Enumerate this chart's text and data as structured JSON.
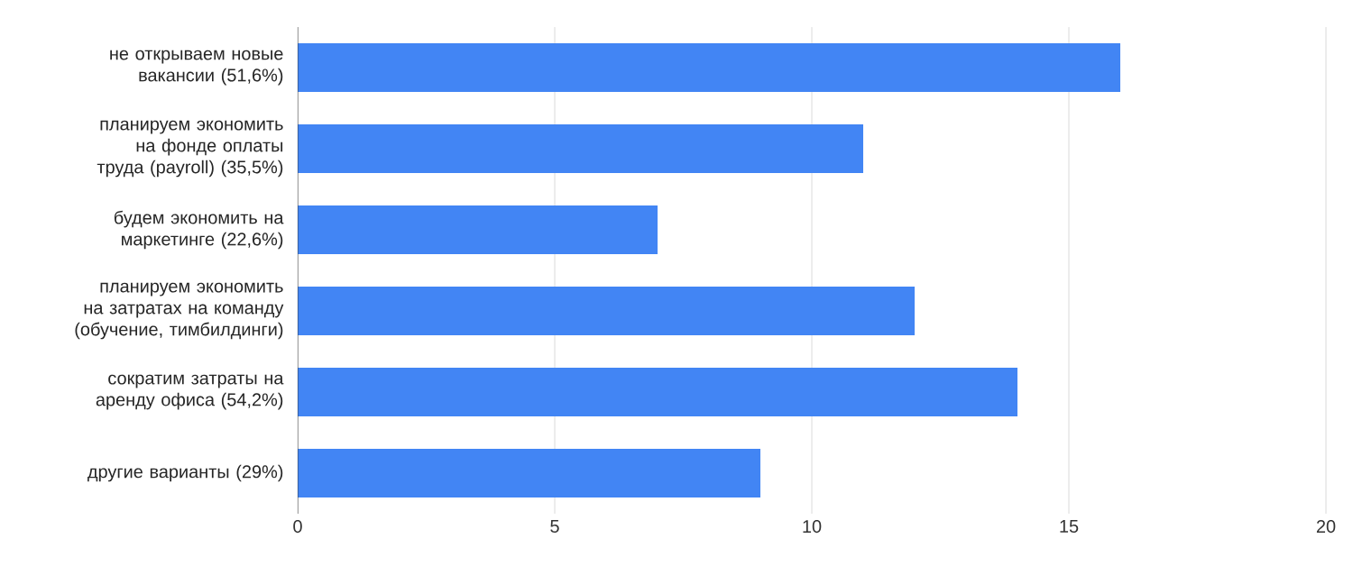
{
  "chart_data": {
    "type": "bar",
    "orientation": "horizontal",
    "categories": [
      "не открываем новые вакансии (51,6%)",
      "планируем экономить на фонде оплаты труда (payroll) (35,5%)",
      "будем экономить на маркетинге (22,6%)",
      "планируем экономить на затратах на команду (обучение, тимбилдинги)",
      "сократим затраты на аренду офиса (54,2%)",
      "другие варианты (29%)"
    ],
    "values": [
      16,
      11,
      7,
      12,
      14,
      9
    ],
    "color": "#4285f4",
    "xlim": [
      0,
      20
    ],
    "xticks": [
      0,
      5,
      10,
      15,
      20
    ],
    "grid": "x"
  }
}
